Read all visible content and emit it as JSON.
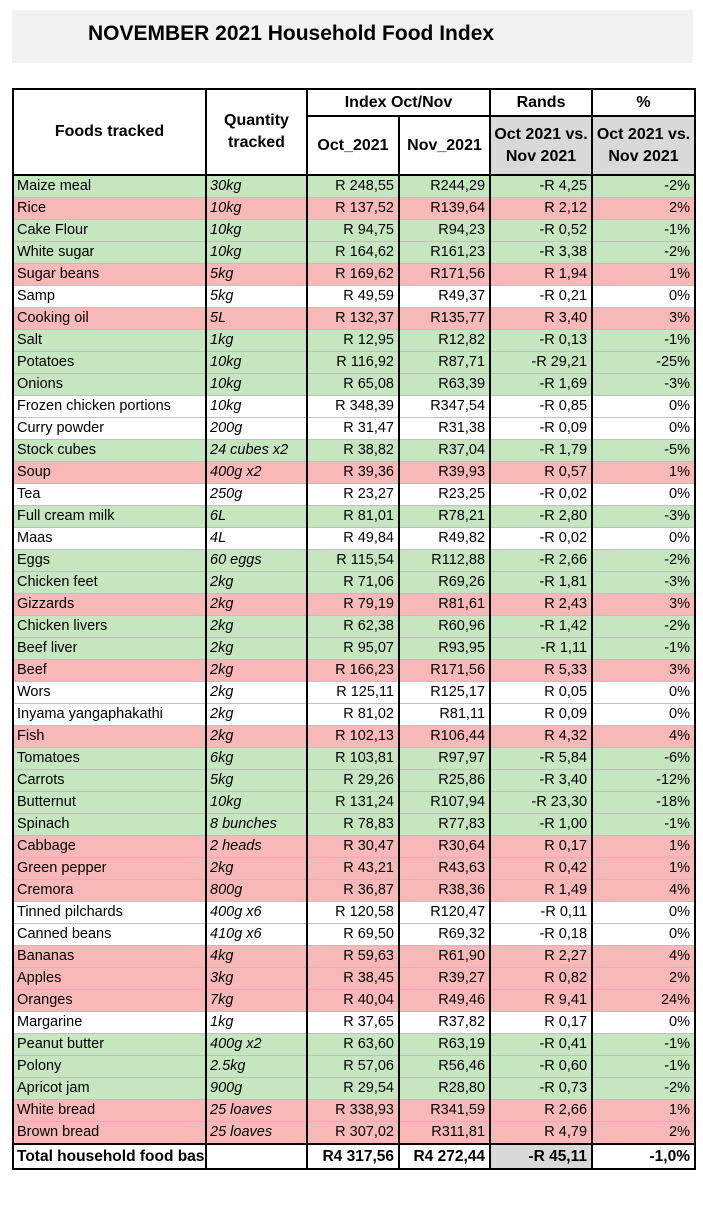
{
  "title": "NOVEMBER 2021 Household Food Index",
  "headers": {
    "foods": "Foods tracked",
    "quantity_line1": "Quantity",
    "quantity_line2": "tracked",
    "index_group": "Index Oct/Nov",
    "rands_group": "Rands",
    "pct_group": "%",
    "oct": "Oct_2021",
    "nov": "Nov_2021",
    "rands_sub_line1": "Oct 2021 vs.",
    "rands_sub_line2": "Nov 2021",
    "pct_sub_line1": "Oct 2021 vs.",
    "pct_sub_line2": "Nov 2021"
  },
  "row_colors": {
    "green": "#c6e6c0",
    "red": "#f8b8b8",
    "white": "#ffffff"
  },
  "rows": [
    {
      "food": "Maize meal",
      "qty": "30kg",
      "oct": "R 248,55",
      "nov": "R244,29",
      "rands": "-R 4,25",
      "pct": "-2%",
      "color": "green"
    },
    {
      "food": "Rice",
      "qty": "10kg",
      "oct": "R 137,52",
      "nov": "R139,64",
      "rands": "R 2,12",
      "pct": "2%",
      "color": "red"
    },
    {
      "food": "Cake Flour",
      "qty": "10kg",
      "oct": "R 94,75",
      "nov": "R94,23",
      "rands": "-R 0,52",
      "pct": "-1%",
      "color": "green"
    },
    {
      "food": "White sugar",
      "qty": "10kg",
      "oct": "R 164,62",
      "nov": "R161,23",
      "rands": "-R 3,38",
      "pct": "-2%",
      "color": "green"
    },
    {
      "food": "Sugar beans",
      "qty": "5kg",
      "oct": "R 169,62",
      "nov": "R171,56",
      "rands": "R 1,94",
      "pct": "1%",
      "color": "red"
    },
    {
      "food": "Samp",
      "qty": "5kg",
      "oct": "R 49,59",
      "nov": "R49,37",
      "rands": "-R 0,21",
      "pct": "0%",
      "color": "white"
    },
    {
      "food": "Cooking oil",
      "qty": "5L",
      "oct": "R 132,37",
      "nov": "R135,77",
      "rands": "R 3,40",
      "pct": "3%",
      "color": "red"
    },
    {
      "food": "Salt",
      "qty": "1kg",
      "oct": "R 12,95",
      "nov": "R12,82",
      "rands": "-R 0,13",
      "pct": "-1%",
      "color": "green"
    },
    {
      "food": "Potatoes",
      "qty": "10kg",
      "oct": "R 116,92",
      "nov": "R87,71",
      "rands": "-R 29,21",
      "pct": "-25%",
      "color": "green"
    },
    {
      "food": "Onions",
      "qty": "10kg",
      "oct": "R 65,08",
      "nov": "R63,39",
      "rands": "-R 1,69",
      "pct": "-3%",
      "color": "green"
    },
    {
      "food": "Frozen chicken portions",
      "qty": "10kg",
      "oct": "R 348,39",
      "nov": "R347,54",
      "rands": "-R 0,85",
      "pct": "0%",
      "color": "white"
    },
    {
      "food": "Curry powder",
      "qty": "200g",
      "oct": "R 31,47",
      "nov": "R31,38",
      "rands": "-R 0,09",
      "pct": "0%",
      "color": "white"
    },
    {
      "food": "Stock cubes",
      "qty": "24 cubes x2",
      "oct": "R 38,82",
      "nov": "R37,04",
      "rands": "-R 1,79",
      "pct": "-5%",
      "color": "green"
    },
    {
      "food": "Soup",
      "qty": "400g x2",
      "oct": "R 39,36",
      "nov": "R39,93",
      "rands": "R 0,57",
      "pct": "1%",
      "color": "red"
    },
    {
      "food": "Tea",
      "qty": "250g",
      "oct": "R 23,27",
      "nov": "R23,25",
      "rands": "-R 0,02",
      "pct": "0%",
      "color": "white"
    },
    {
      "food": "Full cream milk",
      "qty": "6L",
      "oct": "R 81,01",
      "nov": "R78,21",
      "rands": "-R 2,80",
      "pct": "-3%",
      "color": "green"
    },
    {
      "food": "Maas",
      "qty": "4L",
      "oct": "R 49,84",
      "nov": "R49,82",
      "rands": "-R 0,02",
      "pct": "0%",
      "color": "white"
    },
    {
      "food": "Eggs",
      "qty": "60 eggs",
      "oct": "R 115,54",
      "nov": "R112,88",
      "rands": "-R 2,66",
      "pct": "-2%",
      "color": "green"
    },
    {
      "food": "Chicken feet",
      "qty": "2kg",
      "oct": "R 71,06",
      "nov": "R69,26",
      "rands": "-R 1,81",
      "pct": "-3%",
      "color": "green"
    },
    {
      "food": "Gizzards",
      "qty": "2kg",
      "oct": "R 79,19",
      "nov": "R81,61",
      "rands": "R 2,43",
      "pct": "3%",
      "color": "red"
    },
    {
      "food": "Chicken livers",
      "qty": "2kg",
      "oct": "R 62,38",
      "nov": "R60,96",
      "rands": "-R 1,42",
      "pct": "-2%",
      "color": "green"
    },
    {
      "food": "Beef liver",
      "qty": "2kg",
      "oct": "R 95,07",
      "nov": "R93,95",
      "rands": "-R 1,11",
      "pct": "-1%",
      "color": "green"
    },
    {
      "food": "Beef",
      "qty": "2kg",
      "oct": "R 166,23",
      "nov": "R171,56",
      "rands": "R 5,33",
      "pct": "3%",
      "color": "red"
    },
    {
      "food": "Wors",
      "qty": "2kg",
      "oct": "R 125,11",
      "nov": "R125,17",
      "rands": "R 0,05",
      "pct": "0%",
      "color": "white"
    },
    {
      "food": "Inyama yangaphakathi",
      "qty": "2kg",
      "oct": "R 81,02",
      "nov": "R81,11",
      "rands": "R 0,09",
      "pct": "0%",
      "color": "white"
    },
    {
      "food": "Fish",
      "qty": "2kg",
      "oct": "R 102,13",
      "nov": "R106,44",
      "rands": "R 4,32",
      "pct": "4%",
      "color": "red"
    },
    {
      "food": "Tomatoes",
      "qty": "6kg",
      "oct": "R 103,81",
      "nov": "R97,97",
      "rands": "-R 5,84",
      "pct": "-6%",
      "color": "green"
    },
    {
      "food": "Carrots",
      "qty": "5kg",
      "oct": "R 29,26",
      "nov": "R25,86",
      "rands": "-R 3,40",
      "pct": "-12%",
      "color": "green"
    },
    {
      "food": "Butternut",
      "qty": "10kg",
      "oct": "R 131,24",
      "nov": "R107,94",
      "rands": "-R 23,30",
      "pct": "-18%",
      "color": "green"
    },
    {
      "food": "Spinach",
      "qty": "8 bunches",
      "oct": "R 78,83",
      "nov": "R77,83",
      "rands": "-R 1,00",
      "pct": "-1%",
      "color": "green"
    },
    {
      "food": "Cabbage",
      "qty": "2 heads",
      "oct": "R 30,47",
      "nov": "R30,64",
      "rands": "R 0,17",
      "pct": "1%",
      "color": "red"
    },
    {
      "food": "Green pepper",
      "qty": "2kg",
      "oct": "R 43,21",
      "nov": "R43,63",
      "rands": "R 0,42",
      "pct": "1%",
      "color": "red"
    },
    {
      "food": "Cremora",
      "qty": "800g",
      "oct": "R 36,87",
      "nov": "R38,36",
      "rands": "R 1,49",
      "pct": "4%",
      "color": "red"
    },
    {
      "food": "Tinned pilchards",
      "qty": "400g x6",
      "oct": "R 120,58",
      "nov": "R120,47",
      "rands": "-R 0,11",
      "pct": "0%",
      "color": "white"
    },
    {
      "food": "Canned beans",
      "qty": "410g x6",
      "oct": "R 69,50",
      "nov": "R69,32",
      "rands": "-R 0,18",
      "pct": "0%",
      "color": "white"
    },
    {
      "food": "Bananas",
      "qty": "4kg",
      "oct": "R 59,63",
      "nov": "R61,90",
      "rands": "R 2,27",
      "pct": "4%",
      "color": "red"
    },
    {
      "food": "Apples",
      "qty": "3kg",
      "oct": "R 38,45",
      "nov": "R39,27",
      "rands": "R 0,82",
      "pct": "2%",
      "color": "red"
    },
    {
      "food": "Oranges",
      "qty": "7kg",
      "oct": "R 40,04",
      "nov": "R49,46",
      "rands": "R 9,41",
      "pct": "24%",
      "color": "red"
    },
    {
      "food": "Margarine",
      "qty": "1kg",
      "oct": "R 37,65",
      "nov": "R37,82",
      "rands": "R 0,17",
      "pct": "0%",
      "color": "white"
    },
    {
      "food": "Peanut butter",
      "qty": "400g x2",
      "oct": "R 63,60",
      "nov": "R63,19",
      "rands": "-R 0,41",
      "pct": "-1%",
      "color": "green"
    },
    {
      "food": "Polony",
      "qty": "2.5kg",
      "oct": "R 57,06",
      "nov": "R56,46",
      "rands": "-R 0,60",
      "pct": "-1%",
      "color": "green"
    },
    {
      "food": "Apricot jam",
      "qty": "900g",
      "oct": "R 29,54",
      "nov": "R28,80",
      "rands": "-R 0,73",
      "pct": "-2%",
      "color": "green"
    },
    {
      "food": "White bread",
      "qty": "25 loaves",
      "oct": "R 338,93",
      "nov": "R341,59",
      "rands": "R 2,66",
      "pct": "1%",
      "color": "red"
    },
    {
      "food": "Brown bread",
      "qty": "25 loaves",
      "oct": "R 307,02",
      "nov": "R311,81",
      "rands": "R 4,79",
      "pct": "2%",
      "color": "red"
    }
  ],
  "total": {
    "label": "Total household food basket",
    "oct": "R4 317,56",
    "nov": "R4 272,44",
    "rands": "-R 45,11",
    "pct": "-1,0%"
  }
}
